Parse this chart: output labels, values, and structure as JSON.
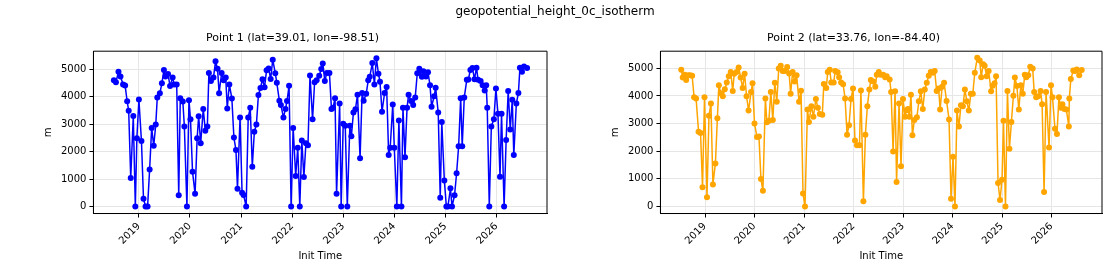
{
  "chart_data": [
    {
      "type": "line",
      "title": "Point 1 (lat=39.01, lon=-98.51)",
      "xlabel": "Init Time",
      "ylabel": "m",
      "annotations": [
        "geopotential_height_0c_isotherm"
      ],
      "xlim": [
        2018.11,
        2026.99
      ],
      "ylim": [
        -255,
        5650
      ],
      "xticks": [
        2019,
        2020,
        2021,
        2022,
        2023,
        2024,
        2025,
        2026
      ],
      "yticks": [
        0,
        1000,
        2000,
        3000,
        4000,
        5000
      ],
      "grid": true,
      "marker": "circle",
      "line_style": "solid",
      "series": [
        {
          "color": "#0000ff",
          "x": [
            2018.51,
            2018.55,
            2018.6,
            2018.64,
            2018.69,
            2018.73,
            2018.77,
            2018.8,
            2018.84,
            2018.89,
            2018.93,
            2018.96,
            2019.0,
            2019.05,
            2019.09,
            2019.13,
            2019.17,
            2019.21,
            2019.25,
            2019.29,
            2019.33,
            2019.36,
            2019.41,
            2019.45,
            2019.49,
            2019.52,
            2019.57,
            2019.61,
            2019.66,
            2019.69,
            2019.74,
            2019.78,
            2019.81,
            2019.86,
            2019.89,
            2019.94,
            2019.98,
            2020.01,
            2020.05,
            2020.1,
            2020.14,
            2020.17,
            2020.21,
            2020.26,
            2020.3,
            2020.34,
            2020.37,
            2020.41,
            2020.46,
            2020.5,
            2020.54,
            2020.57,
            2020.62,
            2020.66,
            2020.7,
            2020.73,
            2020.77,
            2020.82,
            2020.86,
            2020.9,
            2020.93,
            2020.98,
            2021.02,
            2021.05,
            2021.1,
            2021.14,
            2021.18,
            2021.22,
            2021.26,
            2021.3,
            2021.34,
            2021.38,
            2021.42,
            2021.46,
            2021.5,
            2021.54,
            2021.58,
            2021.62,
            2021.67,
            2021.7,
            2021.75,
            2021.78,
            2021.83,
            2021.87,
            2021.9,
            2021.94,
            2021.98,
            2022.02,
            2022.07,
            2022.11,
            2022.15,
            2022.19,
            2022.23,
            2022.27,
            2022.31,
            2022.35,
            2022.4,
            2022.44,
            2022.48,
            2022.53,
            2022.57,
            2022.6,
            2022.64,
            2022.68,
            2022.73,
            2022.77,
            2022.8,
            2022.84,
            2022.87,
            2022.93,
            2022.96,
            2023.0,
            2023.04,
            2023.08,
            2023.13,
            2023.16,
            2023.2,
            2023.24,
            2023.28,
            2023.33,
            2023.37,
            2023.4,
            2023.45,
            2023.49,
            2023.52,
            2023.57,
            2023.61,
            2023.65,
            2023.69,
            2023.72,
            2023.76,
            2023.81,
            2023.85,
            2023.89,
            2023.92,
            2023.97,
            2024.0,
            2024.05,
            2024.09,
            2024.14,
            2024.17,
            2024.21,
            2024.25,
            2024.28,
            2024.33,
            2024.37,
            2024.41,
            2024.45,
            2024.49,
            2024.54,
            2024.57,
            2024.62,
            2024.66,
            2024.7,
            2024.73,
            2024.78,
            2024.81,
            2024.86,
            2024.9,
            2024.93,
            2024.98,
            2025.02,
            2025.05,
            2025.1,
            2025.13,
            2025.18,
            2025.22,
            2025.26,
            2025.3,
            2025.33,
            2025.37,
            2025.42,
            2025.45,
            2025.49,
            2025.53,
            2025.57,
            2025.61,
            2025.64,
            2025.69,
            2025.73,
            2025.77,
            2025.8,
            2025.82,
            2025.86,
            2025.9,
            2025.95,
            2025.99,
            2026.03,
            2026.07,
            2026.1,
            2026.15,
            2026.19,
            2026.23,
            2026.27,
            2026.31,
            2026.34,
            2026.39,
            2026.43,
            2026.46,
            2026.5,
            2026.54,
            2026.6
          ],
          "values": [
            4590,
            4520,
            4900,
            4730,
            4440,
            4400,
            3830,
            3480,
            1040,
            3290,
            0,
            2480,
            3890,
            2380,
            280,
            0,
            0,
            1350,
            2860,
            2210,
            2980,
            3970,
            4120,
            4480,
            4970,
            4730,
            4820,
            4380,
            4690,
            4440,
            4440,
            410,
            3940,
            3820,
            2910,
            0,
            3870,
            3170,
            1260,
            460,
            2480,
            3280,
            2300,
            3550,
            2760,
            2910,
            4860,
            4570,
            4690,
            5280,
            5010,
            4120,
            4860,
            4590,
            4690,
            3570,
            4440,
            3930,
            2510,
            2060,
            650,
            3240,
            500,
            420,
            0,
            3240,
            3590,
            1450,
            2720,
            2980,
            4060,
            4310,
            4630,
            4340,
            4960,
            5020,
            4640,
            5340,
            4850,
            4500,
            3850,
            3690,
            3240,
            3550,
            3840,
            4390,
            0,
            2860,
            1110,
            2140,
            0,
            2400,
            1070,
            2300,
            2230,
            4770,
            3170,
            4520,
            4590,
            4760,
            5000,
            5200,
            4570,
            4860,
            4860,
            3550,
            3590,
            3940,
            460,
            3750,
            0,
            3010,
            2940,
            0,
            2940,
            2560,
            3420,
            3540,
            4070,
            1760,
            4130,
            3850,
            4100,
            4590,
            4720,
            5220,
            4440,
            5390,
            4830,
            4540,
            3450,
            4130,
            4350,
            1870,
            2140,
            3710,
            2140,
            0,
            3130,
            0,
            3590,
            1790,
            3590,
            4070,
            3840,
            3690,
            3970,
            4850,
            5010,
            4720,
            4920,
            4730,
            4880,
            4410,
            3630,
            4010,
            4320,
            3420,
            320,
            3070,
            950,
            0,
            0,
            660,
            0,
            410,
            1210,
            2190,
            3940,
            2190,
            3970,
            4610,
            4620,
            4970,
            5040,
            4630,
            5050,
            4610,
            4570,
            4410,
            4220,
            4410,
            3590,
            0,
            2910,
            3170,
            4290,
            3370,
            1080,
            3370,
            0,
            2420,
            4200,
            2800,
            3880,
            1870,
            3750,
            4130,
            5050,
            4900,
            5090,
            5040
          ]
        }
      ]
    },
    {
      "type": "line",
      "title": "Point 2 (lat=33.76, lon=-84.40)",
      "xlabel": "Init Time",
      "ylabel": "m",
      "xlim": [
        2018.1,
        2027.02
      ],
      "ylim": [
        -253,
        5620
      ],
      "xticks": [
        2019,
        2020,
        2021,
        2022,
        2023,
        2024,
        2025,
        2026
      ],
      "yticks": [
        0,
        1000,
        2000,
        3000,
        4000,
        5000
      ],
      "grid": true,
      "marker": "circle",
      "line_style": "solid",
      "series": [
        {
          "color": "#ffa500",
          "x": [
            2018.52,
            2018.55,
            2018.59,
            2018.62,
            2018.66,
            2018.7,
            2018.74,
            2018.78,
            2018.82,
            2018.87,
            2018.91,
            2018.95,
            2018.99,
            2019.04,
            2019.08,
            2019.12,
            2019.16,
            2019.21,
            2019.25,
            2019.28,
            2019.32,
            2019.36,
            2019.4,
            2019.44,
            2019.48,
            2019.52,
            2019.56,
            2019.59,
            2019.64,
            2019.68,
            2019.72,
            2019.76,
            2019.8,
            2019.84,
            2019.88,
            2019.93,
            2019.96,
            2020.0,
            2020.05,
            2020.09,
            2020.13,
            2020.17,
            2020.22,
            2020.25,
            2020.29,
            2020.33,
            2020.37,
            2020.41,
            2020.45,
            2020.49,
            2020.53,
            2020.57,
            2020.61,
            2020.66,
            2020.7,
            2020.73,
            2020.77,
            2020.81,
            2020.85,
            2020.9,
            2020.94,
            2020.98,
            2021.02,
            2021.07,
            2021.1,
            2021.15,
            2021.19,
            2021.24,
            2021.28,
            2021.32,
            2021.37,
            2021.4,
            2021.45,
            2021.48,
            2021.52,
            2021.55,
            2021.6,
            2021.63,
            2021.68,
            2021.71,
            2021.75,
            2021.79,
            2021.83,
            2021.87,
            2021.91,
            2021.95,
            2021.99,
            2022.03,
            2022.07,
            2022.12,
            2022.15,
            2022.2,
            2022.24,
            2022.28,
            2022.32,
            2022.35,
            2022.4,
            2022.44,
            2022.47,
            2022.51,
            2022.55,
            2022.6,
            2022.64,
            2022.67,
            2022.73,
            2022.76,
            2022.8,
            2022.84,
            2022.87,
            2022.92,
            2022.96,
            2023.0,
            2023.04,
            2023.07,
            2023.1,
            2023.13,
            2023.16,
            2023.19,
            2023.23,
            2023.28,
            2023.32,
            2023.36,
            2023.4,
            2023.44,
            2023.48,
            2023.52,
            2023.56,
            2023.6,
            2023.64,
            2023.68,
            2023.72,
            2023.75,
            2023.79,
            2023.83,
            2023.88,
            2023.93,
            2023.97,
            2024.01,
            2024.05,
            2024.09,
            2024.13,
            2024.17,
            2024.21,
            2024.25,
            2024.29,
            2024.33,
            2024.37,
            2024.41,
            2024.45,
            2024.5,
            2024.55,
            2024.58,
            2024.62,
            2024.65,
            2024.69,
            2024.73,
            2024.78,
            2024.81,
            2024.85,
            2024.88,
            2024.92,
            2024.96,
            2025.0,
            2025.03,
            2025.07,
            2025.11,
            2025.15,
            2025.19,
            2025.23,
            2025.26,
            2025.3,
            2025.34,
            2025.38,
            2025.42,
            2025.46,
            2025.49,
            2025.53,
            2025.57,
            2025.62,
            2025.65,
            2025.69,
            2025.73,
            2025.78,
            2025.81,
            2025.85,
            2025.89,
            2025.95,
            2025.99,
            2026.02,
            2026.07,
            2026.11,
            2026.15,
            2026.19,
            2026.22,
            2026.26,
            2026.3,
            2026.35,
            2026.36,
            2026.39,
            2026.44,
            2026.47,
            2026.51,
            2026.56,
            2026.61
          ],
          "values": [
            4950,
            4670,
            4770,
            4580,
            4750,
            4750,
            4730,
            3950,
            3910,
            2710,
            2660,
            700,
            3950,
            340,
            3280,
            3730,
            800,
            1560,
            3190,
            4390,
            4100,
            3990,
            4240,
            4490,
            4710,
            4870,
            4180,
            4800,
            4870,
            5030,
            4670,
            4290,
            4800,
            3990,
            3470,
            4140,
            4460,
            3000,
            2520,
            2530,
            1000,
            570,
            3910,
            3050,
            3100,
            4140,
            3130,
            4480,
            3790,
            4990,
            5090,
            4900,
            4900,
            5050,
            4810,
            4080,
            4870,
            4520,
            4750,
            3790,
            4190,
            470,
            0,
            3510,
            3060,
            3630,
            3250,
            3890,
            3570,
            3350,
            3320,
            4430,
            4290,
            4870,
            4950,
            4490,
            4490,
            4900,
            4860,
            4680,
            4490,
            4420,
            3910,
            2600,
            2940,
            3890,
            4270,
            2390,
            2220,
            2220,
            4200,
            190,
            2600,
            3630,
            4230,
            4580,
            4520,
            4330,
            4770,
            4870,
            4770,
            4770,
            4680,
            4710,
            4600,
            4140,
            1990,
            4170,
            890,
            3730,
            1460,
            3890,
            3250,
            3480,
            3530,
            3250,
            4040,
            2580,
            3130,
            3230,
            3810,
            4170,
            3530,
            4230,
            4480,
            4730,
            4870,
            4840,
            4900,
            4180,
            4270,
            3510,
            4330,
            4480,
            3820,
            3150,
            280,
            1800,
            0,
            3470,
            2900,
            3660,
            3630,
            4230,
            3810,
            3470,
            4080,
            4080,
            4840,
            5380,
            5280,
            4680,
            5150,
            5090,
            4710,
            4900,
            4170,
            4370,
            4460,
            4710,
            850,
            240,
            970,
            3100,
            0,
            4180,
            2090,
            3060,
            4010,
            4670,
            4360,
            3510,
            4390,
            4080,
            4770,
            4680,
            4750,
            5060,
            4990,
            4140,
            3950,
            3990,
            4180,
            3700,
            530,
            4140,
            2140,
            4390,
            3950,
            2810,
            2620,
            3950,
            3570,
            3700,
            3530,
            3510,
            2900,
            3910,
            4610,
            4920,
            4900,
            4960,
            4750,
            4940
          ]
        }
      ]
    }
  ]
}
